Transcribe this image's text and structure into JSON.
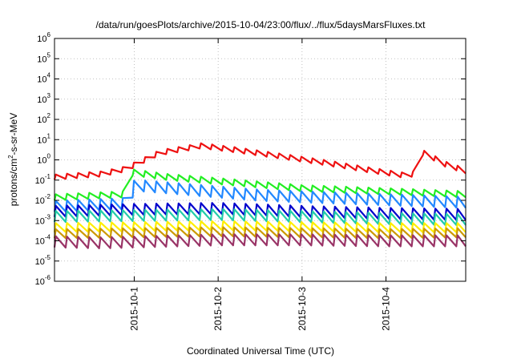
{
  "chart_data": {
    "type": "line",
    "title": "/data/run/goesPlots/archive/2015-10-04/23:00/flux/../flux/5daysMarsFluxes.txt",
    "xlabel": "Coordinated Universal Time (UTC)",
    "ylabel_parts": {
      "prefix": "protons/cm",
      "sup": "2",
      "suffix": "-s-sr-MeV"
    },
    "yscale": "log",
    "ylim_exp": [
      -6,
      6
    ],
    "y_tick_exponents": [
      -6,
      -5,
      -4,
      -3,
      -2,
      -1,
      0,
      1,
      2,
      3,
      4,
      5,
      6
    ],
    "y_tick_base": "10",
    "xlim_days": [
      -0.95,
      3.95
    ],
    "x_ticks": [
      {
        "label": "2015-10-1",
        "day": 0
      },
      {
        "label": "2015-10-2",
        "day": 1
      },
      {
        "label": "2015-10-3",
        "day": 2
      },
      {
        "label": "2015-10-4",
        "day": 3
      }
    ],
    "grid": true,
    "sawtooth_period_days": 0.133,
    "series": [
      {
        "color": "#ee1111",
        "envelope": [
          [
            -0.95,
            -0.85
          ],
          [
            -0.4,
            -0.7
          ],
          [
            -0.1,
            -0.45
          ],
          [
            0.3,
            0.35
          ],
          [
            0.8,
            0.7
          ],
          [
            1.2,
            0.5
          ],
          [
            1.8,
            0.15
          ],
          [
            2.3,
            -0.15
          ],
          [
            2.8,
            -0.5
          ],
          [
            3.2,
            -0.75
          ],
          [
            3.34,
            -0.7
          ],
          [
            3.35,
            0.5
          ],
          [
            3.5,
            0.25
          ],
          [
            3.7,
            -0.2
          ],
          [
            3.95,
            -0.55
          ]
        ],
        "amplitude": 0.25
      },
      {
        "color": "#22ee22",
        "envelope": [
          [
            -0.95,
            -1.85
          ],
          [
            -0.1,
            -1.7
          ],
          [
            -0.05,
            -0.6
          ],
          [
            0.4,
            -0.85
          ],
          [
            1.0,
            -1.05
          ],
          [
            2.0,
            -1.4
          ],
          [
            3.0,
            -1.55
          ],
          [
            3.95,
            -1.7
          ]
        ],
        "amplitude": 0.3
      },
      {
        "color": "#2288ff",
        "envelope": [
          [
            -0.95,
            -2.3
          ],
          [
            -0.05,
            -2.15
          ],
          [
            0.0,
            -1.25
          ],
          [
            0.6,
            -1.45
          ],
          [
            1.5,
            -1.75
          ],
          [
            2.5,
            -1.9
          ],
          [
            3.95,
            -2.1
          ]
        ],
        "amplitude": 0.55
      },
      {
        "color": "#0000cc",
        "envelope": [
          [
            -0.95,
            -2.55
          ],
          [
            0.0,
            -2.45
          ],
          [
            1.0,
            -2.4
          ],
          [
            2.0,
            -2.55
          ],
          [
            3.0,
            -2.65
          ],
          [
            3.95,
            -2.7
          ]
        ],
        "amplitude": 0.55
      },
      {
        "color": "#22ccaa",
        "envelope": [
          [
            -0.95,
            -2.8
          ],
          [
            0.0,
            -2.75
          ],
          [
            1.0,
            -2.7
          ],
          [
            2.0,
            -2.8
          ],
          [
            3.0,
            -2.9
          ],
          [
            3.95,
            -2.95
          ]
        ],
        "amplitude": 0.55
      },
      {
        "color": "#ffee00",
        "envelope": [
          [
            -0.95,
            -3.35
          ],
          [
            1.0,
            -3.25
          ],
          [
            2.0,
            -3.3
          ],
          [
            3.0,
            -3.35
          ],
          [
            3.95,
            -3.35
          ]
        ],
        "amplitude": 0.45
      },
      {
        "color": "#cc9900",
        "envelope": [
          [
            -0.95,
            -3.65
          ],
          [
            1.0,
            -3.55
          ],
          [
            2.0,
            -3.6
          ],
          [
            3.0,
            -3.65
          ],
          [
            3.95,
            -3.6
          ]
        ],
        "amplitude": 0.45
      },
      {
        "color": "#993366",
        "envelope": [
          [
            -0.95,
            -4.05
          ],
          [
            -0.4,
            -4.1
          ],
          [
            1.0,
            -3.95
          ],
          [
            2.0,
            -3.95
          ],
          [
            3.0,
            -4.0
          ],
          [
            3.95,
            -4.0
          ]
        ],
        "amplitude": 0.55
      }
    ]
  }
}
